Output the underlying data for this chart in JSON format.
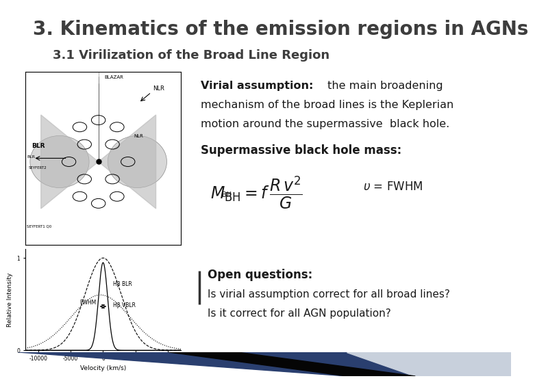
{
  "title": "3. Kinematics of the emission regions in AGNs",
  "subtitle": "3.1 Virilization of the Broad Line Region",
  "title_color": "#3d3d3d",
  "subtitle_color": "#3d3d3d",
  "background_color": "#ffffff",
  "title_fontsize": 20,
  "subtitle_fontsize": 13,
  "text_color": "#1a1a1a",
  "virial_bold": "Virial assumption:",
  "virial_rest": " the main broadening\nmechanism of the broad lines is the Keplerian\nmotion around the supermassive  black hole.",
  "sbh_label": "Supermassive black hole mass:",
  "open_bold": "Open questions:",
  "open_q1": "Is virial assumption correct for all broad lines?",
  "open_q2": "Is it correct for all AGN population?",
  "bar_color1": "#2a4a7f",
  "bar_color2": "#000000",
  "bar_color3": "#b0c0d8"
}
